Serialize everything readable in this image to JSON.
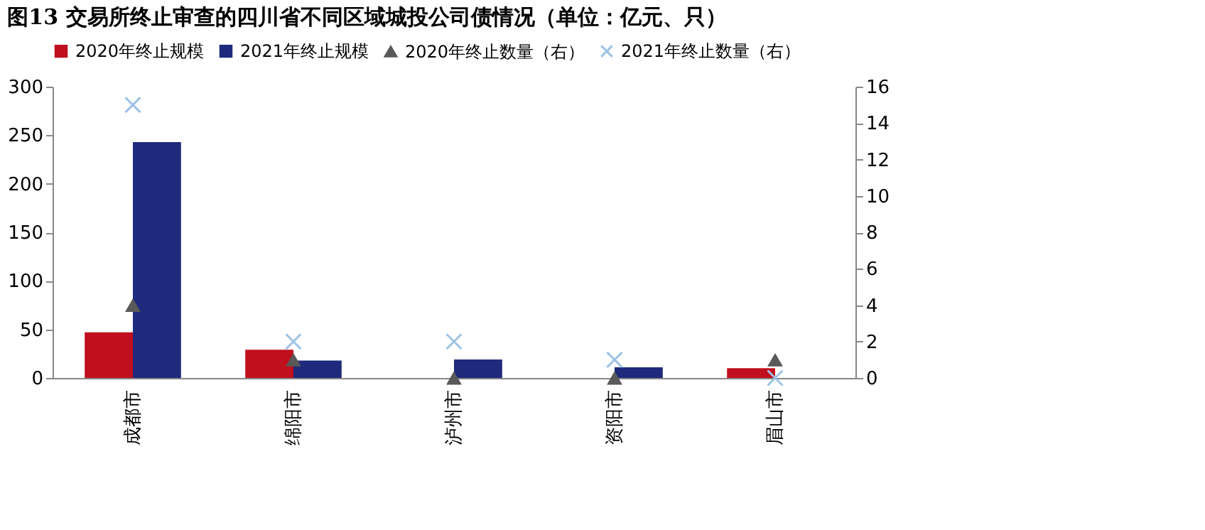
{
  "chart_data": {
    "type": "bar",
    "title": "图13 交易所终止审查的四川省不同区域城投公司债情况（单位：亿元、只）",
    "categories": [
      "成都市",
      "绵阳市",
      "泸州市",
      "资阳市",
      "眉山市"
    ],
    "series": [
      {
        "name": "2020年终止规模",
        "color": "#c00f1e",
        "values": [
          47,
          29,
          0,
          0,
          10
        ]
      },
      {
        "name": "2021年终止规模",
        "color": "#1f2a7c",
        "values": [
          243,
          18,
          19,
          11,
          0
        ]
      },
      {
        "name": "2020年终止数量（右）",
        "type": "scatter",
        "marker": "triangle",
        "axis": "y2",
        "color": "#595959",
        "values": [
          4,
          1,
          0,
          0,
          1
        ]
      },
      {
        "name": "2021年终止数量（右）",
        "type": "scatter",
        "marker": "cross",
        "axis": "y2",
        "color": "#9dc3e6",
        "values": [
          15,
          2,
          2,
          1,
          0
        ]
      }
    ],
    "ylim": [
      0,
      300
    ],
    "yticks": [
      0,
      50,
      100,
      150,
      200,
      250,
      300
    ],
    "y2lim": [
      0,
      16
    ],
    "y2ticks": [
      0,
      2,
      4,
      6,
      8,
      10,
      12,
      14,
      16
    ],
    "grid": false,
    "legend": "top"
  }
}
